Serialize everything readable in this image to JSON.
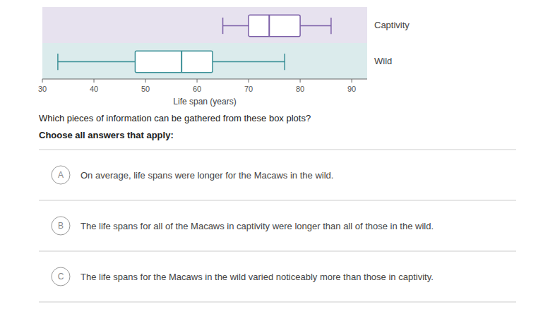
{
  "chart_data": {
    "type": "box",
    "orientation": "horizontal",
    "xlabel": "Life span (years)",
    "xlim": [
      30,
      93
    ],
    "xticks": [
      30,
      40,
      50,
      60,
      70,
      80,
      90
    ],
    "grid": false,
    "series": [
      {
        "name": "Captivity",
        "color": "#7b5ea7",
        "whisker_low": 65,
        "q1": 70,
        "median": 74,
        "q3": 80,
        "whisker_high": 86
      },
      {
        "name": "Wild",
        "color": "#3a8f96",
        "whisker_low": 33,
        "q1": 48,
        "median": 57,
        "q3": 63,
        "whisker_high": 77
      }
    ]
  },
  "question": "Which pieces of information can be gathered from these box plots?",
  "instruction": "Choose all answers that apply:",
  "options": [
    {
      "label": "A",
      "text": "On average, life spans were longer for the Macaws in the wild."
    },
    {
      "label": "B",
      "text": "The life spans for all of the Macaws in captivity were longer than all of those in the wild."
    },
    {
      "label": "C",
      "text": "The life spans for the Macaws in the wild varied noticeably more than those in captivity."
    }
  ]
}
